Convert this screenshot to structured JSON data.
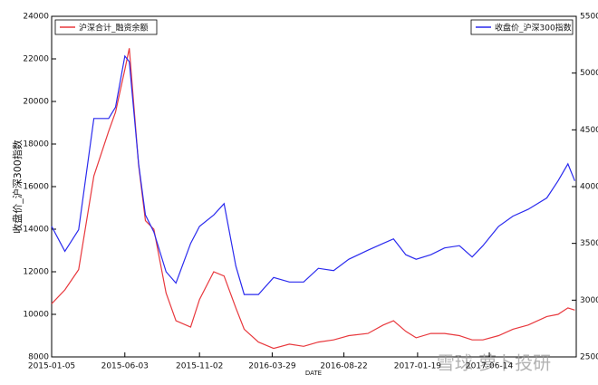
{
  "chart_data": {
    "type": "line",
    "y_label": "收盘价_沪深300指数",
    "x_label": "DATE",
    "watermark": "雪球 萝卜投研",
    "x": [
      "2015-01-05",
      "2015-02-01",
      "2015-03-01",
      "2015-04-01",
      "2015-05-01",
      "2015-05-15",
      "2015-06-03",
      "2015-06-12",
      "2015-07-01",
      "2015-07-15",
      "2015-08-01",
      "2015-08-26",
      "2015-09-15",
      "2015-10-15",
      "2015-11-02",
      "2015-12-01",
      "2015-12-22",
      "2016-01-15",
      "2016-02-01",
      "2016-03-01",
      "2016-04-01",
      "2016-05-03",
      "2016-06-01",
      "2016-07-01",
      "2016-08-01",
      "2016-09-01",
      "2016-10-10",
      "2016-11-10",
      "2016-12-01",
      "2016-12-26",
      "2017-01-16",
      "2017-02-15",
      "2017-03-15",
      "2017-04-14",
      "2017-05-10",
      "2017-06-01",
      "2017-07-03",
      "2017-08-01",
      "2017-09-01",
      "2017-10-09",
      "2017-11-01",
      "2017-11-21",
      "2017-12-05"
    ],
    "series": [
      {
        "name": "沪深合计_融资余额",
        "color": "#e8383d",
        "axis": "y",
        "legend": "upper left",
        "values": [
          10500,
          11150,
          12100,
          16500,
          18600,
          19500,
          21500,
          22500,
          17000,
          14400,
          14000,
          11000,
          9700,
          9400,
          10700,
          12000,
          11800,
          10300,
          9300,
          8700,
          8400,
          8600,
          8500,
          8700,
          8800,
          9000,
          9100,
          9500,
          9700,
          9200,
          8900,
          9100,
          9100,
          9000,
          8800,
          8800,
          9000,
          9300,
          9500,
          9900,
          10000,
          10300,
          10200
        ]
      },
      {
        "name": "收盘价_沪深300指数",
        "color": "#2a2aee",
        "axis": "y2",
        "legend": "upper right",
        "values": [
          3650,
          3430,
          3620,
          4600,
          4600,
          4700,
          5150,
          5100,
          4200,
          3750,
          3600,
          3250,
          3150,
          3500,
          3650,
          3750,
          3850,
          3300,
          3050,
          3050,
          3200,
          3160,
          3160,
          3280,
          3260,
          3360,
          3440,
          3500,
          3540,
          3400,
          3360,
          3400,
          3460,
          3480,
          3380,
          3480,
          3650,
          3740,
          3800,
          3900,
          4050,
          4200,
          4050
        ]
      }
    ],
    "xlim": [
      "2015-01-05",
      "2017-12-08"
    ],
    "xticks": [
      "2015-01-05",
      "2015-06-03",
      "2015-11-02",
      "2016-03-29",
      "2016-08-22",
      "2017-01-19",
      "2017-06-14"
    ],
    "ylim": [
      8000,
      24000
    ],
    "yticks": [
      8000,
      10000,
      12000,
      14000,
      16000,
      18000,
      20000,
      22000,
      24000
    ],
    "y2lim": [
      2500,
      5500
    ],
    "y2ticks": [
      2500,
      3000,
      3500,
      4000,
      4500,
      5000,
      5500
    ],
    "grid": false
  }
}
